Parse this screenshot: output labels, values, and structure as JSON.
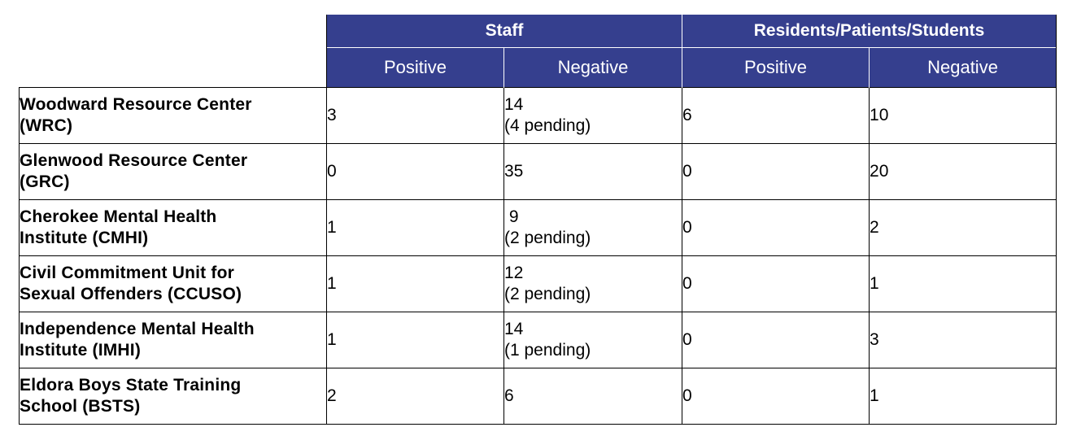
{
  "header": {
    "groups": [
      "Staff",
      "Residents/Patients/Students"
    ],
    "subheaders": [
      "Positive",
      "Negative",
      "Positive",
      "Negative"
    ]
  },
  "rows": [
    {
      "name": [
        "Woodward Resource Center",
        "(WRC)"
      ],
      "staff_positive": "3",
      "staff_negative": [
        "14",
        "(4 pending)"
      ],
      "res_positive": "6",
      "res_negative": "10"
    },
    {
      "name": [
        "Glenwood Resource Center",
        "(GRC)"
      ],
      "staff_positive": "0",
      "staff_negative": [
        "35",
        ""
      ],
      "res_positive": "0",
      "res_negative": "20"
    },
    {
      "name": [
        "Cherokee Mental Health",
        "Institute (CMHI)"
      ],
      "staff_positive": "1",
      "staff_negative": [
        " 9",
        "(2 pending)"
      ],
      "res_positive": "0",
      "res_negative": "2"
    },
    {
      "name": [
        "Civil Commitment Unit for",
        "Sexual Offenders (CCUSO)"
      ],
      "staff_positive": "1",
      "staff_negative": [
        "12",
        "(2 pending)"
      ],
      "res_positive": "0",
      "res_negative": "1"
    },
    {
      "name": [
        "Independence Mental Health",
        "Institute (IMHI)"
      ],
      "staff_positive": "1",
      "staff_negative": [
        "14",
        "(1 pending)"
      ],
      "res_positive": "0",
      "res_negative": "3"
    },
    {
      "name": [
        "Eldora Boys State Training",
        "School (BSTS)"
      ],
      "staff_positive": "2",
      "staff_negative": [
        "6",
        ""
      ],
      "res_positive": "0",
      "res_negative": "1"
    }
  ]
}
